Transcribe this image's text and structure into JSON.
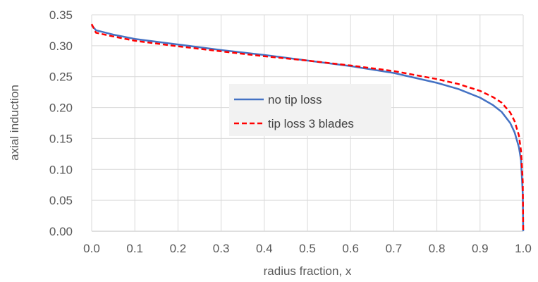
{
  "chart_data": {
    "type": "line",
    "xlabel": "radius fraction, x",
    "ylabel": "axial induction",
    "xlim": [
      0.0,
      1.0
    ],
    "ylim": [
      0.0,
      0.35
    ],
    "x_ticks": [
      "0.0",
      "0.1",
      "0.2",
      "0.3",
      "0.4",
      "0.5",
      "0.6",
      "0.7",
      "0.8",
      "0.9",
      "1.0"
    ],
    "y_ticks": [
      "0.00",
      "0.05",
      "0.10",
      "0.15",
      "0.20",
      "0.25",
      "0.30",
      "0.35"
    ],
    "grid": "vertical and horizontal major gridlines",
    "legend_position": "center-right",
    "series": [
      {
        "name": "no tip loss",
        "color": "#4472C4",
        "style": "solid",
        "x": [
          0.0,
          0.01,
          0.05,
          0.1,
          0.2,
          0.3,
          0.4,
          0.5,
          0.6,
          0.7,
          0.8,
          0.85,
          0.9,
          0.93,
          0.95,
          0.97,
          0.98,
          0.99,
          0.995,
          0.999,
          1.0
        ],
        "y": [
          0.333,
          0.325,
          0.318,
          0.311,
          0.302,
          0.293,
          0.285,
          0.276,
          0.267,
          0.256,
          0.24,
          0.23,
          0.216,
          0.204,
          0.193,
          0.175,
          0.16,
          0.136,
          0.115,
          0.06,
          0.0
        ]
      },
      {
        "name": "tip loss 3 blades",
        "color": "#FF0000",
        "style": "dashed",
        "x": [
          0.0,
          0.01,
          0.05,
          0.1,
          0.2,
          0.3,
          0.4,
          0.5,
          0.6,
          0.7,
          0.8,
          0.85,
          0.9,
          0.93,
          0.95,
          0.97,
          0.98,
          0.99,
          0.995,
          0.999,
          1.0
        ],
        "y": [
          0.335,
          0.321,
          0.315,
          0.308,
          0.299,
          0.291,
          0.283,
          0.276,
          0.268,
          0.259,
          0.246,
          0.238,
          0.227,
          0.217,
          0.208,
          0.192,
          0.178,
          0.155,
          0.13,
          0.08,
          0.0
        ]
      }
    ]
  }
}
